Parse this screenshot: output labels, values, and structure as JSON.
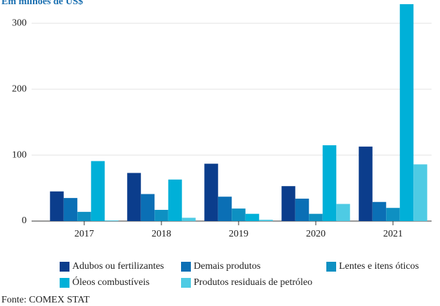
{
  "chart_data": {
    "type": "bar",
    "subtitle": "Em milhões de US$",
    "categories": [
      "2017",
      "2018",
      "2019",
      "2020",
      "2021"
    ],
    "series": [
      {
        "name": "Adubos ou fertilizantes",
        "color": "#0b3d8c",
        "values": [
          45,
          73,
          87,
          53,
          113
        ]
      },
      {
        "name": "Demais produtos",
        "color": "#0b6fb5",
        "values": [
          35,
          41,
          37,
          34,
          29
        ]
      },
      {
        "name": "Lentes e itens óticos",
        "color": "#0e90c2",
        "values": [
          14,
          17,
          19,
          11,
          20
        ]
      },
      {
        "name": "Óleos combustíveis",
        "color": "#00b0d8",
        "values": [
          91,
          63,
          11,
          115,
          329
        ]
      },
      {
        "name": "Produtos residuais de petróleo",
        "color": "#4ecbe4",
        "values": [
          1,
          5,
          2,
          26,
          86
        ]
      }
    ],
    "ylim": [
      0,
      330
    ],
    "yticks": [
      0,
      100,
      200,
      300
    ],
    "grid": true,
    "source": "Fonte: COMEX STAT"
  }
}
